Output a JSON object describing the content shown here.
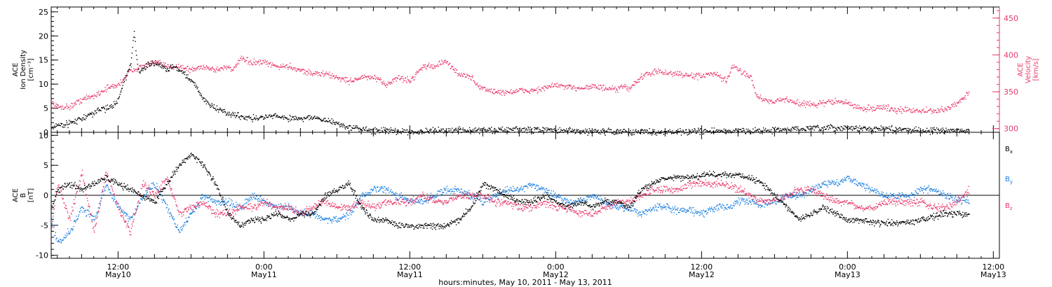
{
  "figure": {
    "xlabel": "hours:minutes, May 10, 2011 - May 13, 2011",
    "x_unit": "hours since May 10, 2011 00:00",
    "xlim": [
      6.5,
      84.5
    ],
    "x_ticks": [
      {
        "x": 12,
        "line1": "12:00",
        "line2": "May10"
      },
      {
        "x": 24,
        "line1": "0:00",
        "line2": "May11"
      },
      {
        "x": 36,
        "line1": "12:00",
        "line2": "May11"
      },
      {
        "x": 48,
        "line1": "0:00",
        "line2": "May12"
      },
      {
        "x": 60,
        "line1": "12:00",
        "line2": "May12"
      },
      {
        "x": 72,
        "line1": "0:00",
        "line2": "May13"
      },
      {
        "x": 84,
        "line1": "12:00",
        "line2": "May13"
      }
    ],
    "colors": {
      "black": "#000000",
      "pink": "#e8386a",
      "blue": "#1a7fe0"
    }
  },
  "chart_data": [
    {
      "type": "scatter",
      "panel": "top",
      "left_axis": {
        "label_lines": [
          "ACE",
          "Ion Density",
          "[cm⁻³]"
        ],
        "ylim": [
          0,
          26
        ],
        "ticks": [
          "0",
          "5",
          "10",
          "15",
          "20",
          "25"
        ],
        "tick_values": [
          0,
          5,
          10,
          15,
          20,
          25
        ],
        "color": "#000000"
      },
      "right_axis": {
        "label_lines": [
          "ACE",
          "Velocity",
          "[km/s]"
        ],
        "ylim": [
          295,
          465
        ],
        "ticks": [
          "300",
          "350",
          "400",
          "450"
        ],
        "tick_values": [
          300,
          350,
          400,
          450
        ],
        "color": "#e8386a"
      },
      "series": [
        {
          "axis": "left",
          "color": "#000000",
          "x": [
            6.5,
            7,
            8,
            9,
            10,
            10.5,
            11,
            11.5,
            12,
            12.5,
            13,
            13.3,
            13.6,
            14,
            14.5,
            15,
            15.5,
            16,
            16.5,
            17,
            17.5,
            18,
            18.5,
            19,
            19.5,
            20,
            21,
            22,
            23,
            24,
            25,
            26,
            27,
            28,
            29,
            30,
            31,
            32,
            33,
            34,
            36,
            38,
            40,
            42,
            44,
            46,
            48,
            50,
            52,
            54,
            56,
            58,
            60,
            62,
            64,
            66,
            68,
            70,
            72,
            74,
            76,
            78,
            80,
            82
          ],
          "y": [
            1,
            1.5,
            2,
            3,
            4,
            5,
            5,
            5.5,
            7,
            11,
            14,
            21,
            13,
            13,
            14,
            14.5,
            14,
            13,
            14,
            13,
            12,
            11,
            9,
            7,
            6,
            5,
            4,
            3.5,
            3,
            3.2,
            3.5,
            3,
            3,
            3.2,
            2.5,
            2,
            1,
            0.8,
            0.5,
            0.4,
            0.3,
            0.3,
            0.6,
            0.5,
            0.6,
            0.6,
            0.5,
            0.3,
            0.3,
            0.2,
            0.2,
            0.2,
            0.3,
            0.3,
            0.4,
            0.5,
            0.8,
            0.9,
            1,
            0.8,
            0.7,
            0.5,
            0.4,
            0.5
          ]
        },
        {
          "axis": "right",
          "color": "#e8386a",
          "x": [
            6.5,
            7,
            8,
            9,
            10,
            11,
            12,
            12.5,
            13,
            14,
            15,
            16,
            17,
            18,
            19,
            20,
            21,
            21.5,
            22,
            23,
            24,
            25,
            26,
            27,
            28,
            29,
            30,
            31,
            32,
            32.5,
            33,
            34,
            34.5,
            35,
            36,
            37,
            38,
            38.5,
            39,
            40,
            41,
            41.5,
            42,
            43,
            44,
            45,
            46,
            47,
            48,
            49,
            50,
            51,
            52,
            53,
            53.5,
            54,
            55,
            56,
            57,
            58,
            59,
            60,
            61,
            62,
            62.5,
            63,
            64,
            64.5,
            65,
            66,
            67,
            68,
            69,
            70,
            71,
            72,
            73,
            74,
            75,
            76,
            77,
            78,
            79,
            80,
            81,
            82
          ],
          "y": [
            335,
            330,
            330,
            340,
            345,
            355,
            360,
            370,
            380,
            385,
            390,
            385,
            385,
            380,
            385,
            380,
            385,
            380,
            395,
            390,
            390,
            385,
            385,
            380,
            375,
            375,
            370,
            365,
            370,
            370,
            370,
            360,
            365,
            370,
            365,
            385,
            385,
            390,
            390,
            375,
            370,
            360,
            355,
            350,
            350,
            352,
            352,
            355,
            360,
            356,
            356,
            358,
            355,
            353,
            358,
            355,
            370,
            378,
            376,
            375,
            372,
            372,
            375,
            365,
            385,
            380,
            372,
            345,
            340,
            338,
            340,
            335,
            333,
            335,
            338,
            335,
            328,
            328,
            330,
            325,
            326,
            325,
            324,
            326,
            335,
            350
          ]
        }
      ]
    },
    {
      "type": "scatter",
      "panel": "bottom",
      "left_axis": {
        "label_lines": [
          "ACE",
          "B",
          "[nT]"
        ],
        "ylim": [
          -10.5,
          10.5
        ],
        "ticks": [
          "-10",
          "-5",
          "0",
          "5",
          "10"
        ],
        "tick_values": [
          -10,
          -5,
          0,
          5,
          10
        ],
        "color": "#000000"
      },
      "zero_line": true,
      "legend_placement": "right",
      "series": [
        {
          "name": "Bx",
          "color": "#000000",
          "x": [
            6.5,
            7,
            8,
            9,
            10,
            11,
            12,
            13,
            14,
            15,
            16,
            17,
            18,
            19,
            20,
            21,
            22,
            23,
            24,
            25,
            26,
            27,
            28,
            29,
            30,
            31,
            32,
            33,
            34,
            35,
            36,
            37,
            38,
            39,
            40,
            41,
            42,
            43,
            44,
            45,
            46,
            47,
            48,
            49,
            50,
            51,
            52,
            53,
            54,
            55,
            56,
            57,
            58,
            59,
            60,
            61,
            62,
            63,
            64,
            65,
            66,
            67,
            68,
            69,
            70,
            71,
            72,
            73,
            74,
            75,
            76,
            77,
            78,
            79,
            80,
            81,
            82
          ],
          "y": [
            -2,
            1,
            2,
            1,
            2,
            3,
            2,
            1,
            0,
            -1,
            2,
            5,
            7,
            5,
            2,
            -3,
            -5,
            -4,
            -4,
            -3,
            -4,
            -3,
            -3,
            0,
            1,
            2,
            -2,
            -4,
            -4,
            -5,
            -5,
            -5,
            -5,
            -5,
            -4,
            -2,
            2,
            1,
            0,
            -1,
            -1,
            0,
            -1,
            -2,
            -1,
            -2,
            -1,
            -1,
            -2,
            1,
            2,
            3,
            3,
            3,
            3.5,
            3.5,
            3.5,
            3.5,
            3,
            2,
            0,
            -2,
            -4,
            -3,
            -2,
            -3,
            -4,
            -4,
            -4.5,
            -4.5,
            -4.5,
            -4.5,
            -4,
            -3.5,
            -3,
            -3,
            -3
          ]
        },
        {
          "name": "By",
          "color": "#1a7fe0",
          "x": [
            6.5,
            7,
            8,
            9,
            10,
            11,
            12,
            13,
            14,
            15,
            16,
            17,
            18,
            19,
            20,
            21,
            22,
            23,
            24,
            25,
            26,
            27,
            28,
            29,
            30,
            31,
            32,
            33,
            34,
            35,
            36,
            37,
            38,
            39,
            40,
            41,
            42,
            43,
            44,
            45,
            46,
            47,
            48,
            49,
            50,
            51,
            52,
            53,
            54,
            55,
            56,
            57,
            58,
            59,
            60,
            61,
            62,
            63,
            64,
            65,
            66,
            67,
            68,
            69,
            70,
            71,
            72,
            73,
            74,
            75,
            76,
            77,
            78,
            79,
            80,
            81,
            82
          ],
          "y": [
            -4,
            -8,
            -6,
            -2,
            -4,
            2,
            -2,
            -4,
            0,
            2,
            -2,
            -6,
            -3,
            0,
            -1,
            -1,
            -2,
            0,
            -1,
            -2,
            -2,
            -3,
            -3,
            -4,
            -4,
            -3,
            0,
            1,
            1,
            0,
            -1,
            -1,
            0,
            1,
            1,
            0,
            -1,
            0,
            1,
            1,
            2,
            1,
            0,
            -1,
            -1,
            0,
            -1,
            -2,
            -2,
            -3,
            -2,
            -2,
            -2.5,
            -2.5,
            -3,
            -2,
            -2,
            -1,
            -1,
            -1.5,
            -1,
            0,
            0,
            1,
            2,
            2,
            3,
            2,
            1,
            0,
            0,
            0,
            1,
            1,
            0,
            -0.5,
            -1
          ]
        },
        {
          "name": "Bz",
          "color": "#e8386a",
          "x": [
            6.5,
            7,
            8,
            9,
            10,
            11,
            12,
            13,
            14,
            15,
            16,
            17,
            18,
            19,
            20,
            21,
            22,
            23,
            24,
            25,
            26,
            27,
            28,
            29,
            30,
            31,
            32,
            33,
            34,
            35,
            36,
            37,
            38,
            39,
            40,
            41,
            42,
            43,
            44,
            45,
            46,
            47,
            48,
            49,
            50,
            51,
            52,
            53,
            54,
            55,
            56,
            57,
            58,
            59,
            60,
            61,
            62,
            63,
            64,
            65,
            66,
            67,
            68,
            69,
            70,
            71,
            72,
            73,
            74,
            75,
            76,
            77,
            78,
            79,
            80,
            81,
            82
          ],
          "y": [
            -5,
            2,
            -4,
            4,
            -6,
            4,
            -2,
            -6,
            2,
            0,
            3,
            -3,
            -2,
            -1,
            -3,
            -3,
            -2,
            -2,
            -1,
            -2,
            -2,
            -3,
            -2,
            -1,
            -2,
            -2,
            -1,
            -2,
            -1,
            -1,
            -1,
            0,
            -1,
            -1,
            0,
            0,
            0,
            -1,
            -1,
            -2,
            -2,
            -1,
            -2,
            -2,
            -3,
            -3,
            -2,
            -1,
            -1,
            0,
            1,
            1,
            1,
            2,
            2,
            2,
            2,
            1,
            0,
            -1,
            -1,
            0,
            1,
            1,
            0,
            -1,
            -1,
            -2,
            -2,
            -1,
            -1,
            -1,
            -1,
            -2,
            -2,
            -1,
            1
          ]
        }
      ]
    }
  ]
}
